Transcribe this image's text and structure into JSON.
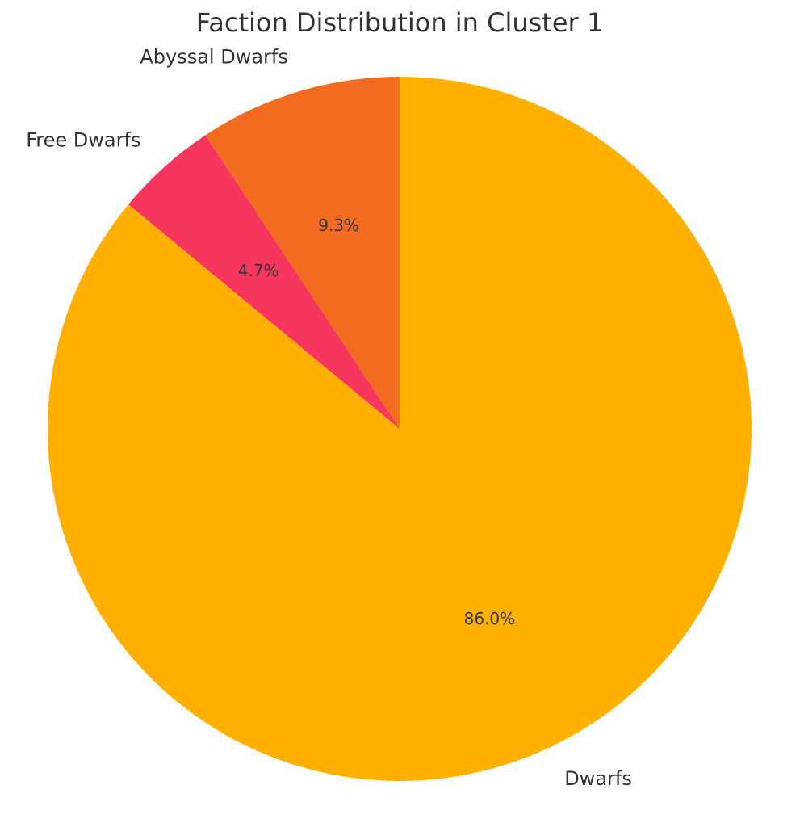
{
  "chart_data": {
    "type": "pie",
    "title": "Faction Distribution in Cluster 1",
    "categories": [
      "Abyssal Dwarfs",
      "Free Dwarfs",
      "Dwarfs"
    ],
    "values": [
      9.3,
      4.7,
      86.0
    ],
    "value_labels": [
      "9.3%",
      "4.7%",
      "86.0%"
    ],
    "colors": [
      "#F26B21",
      "#F6365C",
      "#FFB000"
    ]
  }
}
